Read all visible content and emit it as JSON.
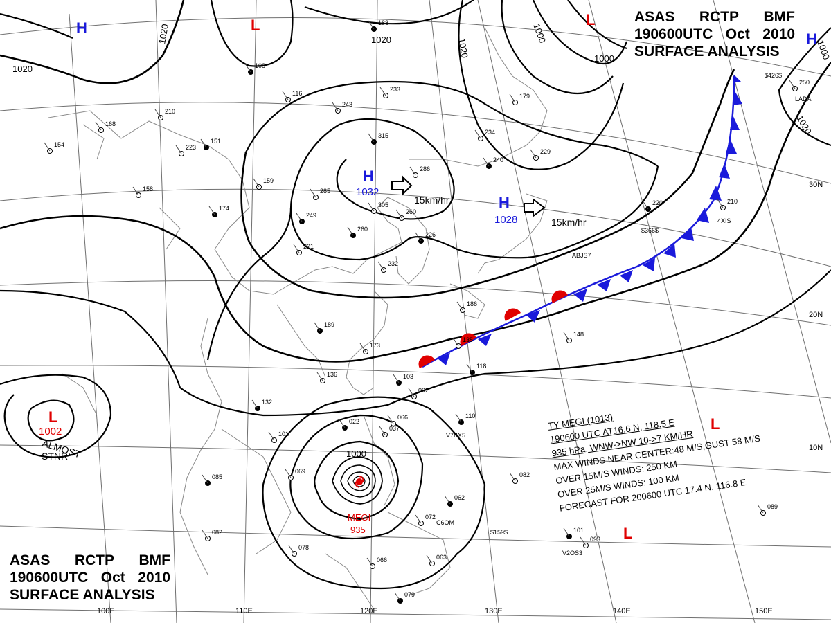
{
  "header": {
    "agency": [
      "ASAS",
      "RCTP",
      "BMF"
    ],
    "time": [
      "190600UTC",
      "Oct",
      "2010"
    ],
    "title": "SURFACE ANALYSIS"
  },
  "colors": {
    "high": "#1a1adb",
    "low": "#e00000",
    "cold_front": "#1a1adb",
    "warm_front": "#e00000",
    "isobar": "#000000",
    "grid": "#707070"
  },
  "lat_labels": [
    "30N",
    "20N",
    "10N"
  ],
  "lon_labels": [
    "110E",
    "120E",
    "130E",
    "140E",
    "150E",
    "100E"
  ],
  "isobar_labels": [
    "1020",
    "1020",
    "1020",
    "1000",
    "1000",
    "1000",
    "1020",
    "1020",
    "1000"
  ],
  "pressure_centers": [
    {
      "type": "H",
      "value": "",
      "color": "high"
    },
    {
      "type": "L",
      "value": "",
      "color": "low"
    },
    {
      "type": "L",
      "value": "",
      "color": "low"
    },
    {
      "type": "H",
      "value": "",
      "color": "high"
    },
    {
      "type": "H",
      "value": "1032",
      "color": "high"
    },
    {
      "type": "H",
      "value": "1028",
      "color": "high"
    },
    {
      "type": "L",
      "value": "1002",
      "color": "low"
    },
    {
      "type": "L",
      "value": "",
      "color": "low"
    },
    {
      "type": "L",
      "value": "",
      "color": "low"
    }
  ],
  "movement_labels": [
    "15km/hr",
    "15km/hr"
  ],
  "low_note": [
    "ALMOST",
    "STNR"
  ],
  "typhoon_center": {
    "name": "MEGI",
    "pressure": "935"
  },
  "typhoon_info": {
    "line1": "TY  MEGI  (1013)",
    "line2": "190600 UTC  AT16.6 N, 118.5 E",
    "line3": "935 hPa, WNW->NW  10->7 KM/HR",
    "line4": "MAX WINDS NEAR CENTER:48 M/S,GUST 58 M/S",
    "line5": "OVER 15M/S WINDS: 250 KM",
    "line6": "OVER 25M/S WINDS: 100 KM",
    "line7": "FORECAST FOR 200600 UTC 17.4 N, 116.8 E"
  },
  "station_values": [
    "188",
    "233",
    "243",
    "315",
    "286",
    "305",
    "260",
    "260",
    "285",
    "249",
    "221",
    "232",
    "189",
    "173",
    "135",
    "103",
    "092",
    "066",
    "110",
    "082",
    "069",
    "085",
    "078",
    "082",
    "062",
    "072",
    "148",
    "118",
    "089",
    "093",
    "101",
    "063",
    "066",
    "079",
    "210",
    "168",
    "151",
    "223",
    "159",
    "174",
    "154",
    "158",
    "132",
    "101",
    "136",
    "108",
    "116",
    "234",
    "240",
    "229",
    "179",
    "220",
    "210",
    "250",
    "226",
    "186",
    "037",
    "022"
  ],
  "station_ids": [
    "$426$",
    "$366$",
    "ABJS7",
    "4XIS",
    "V7BX5",
    "C6OM",
    "$159$",
    "V2OS3",
    "LADA"
  ]
}
